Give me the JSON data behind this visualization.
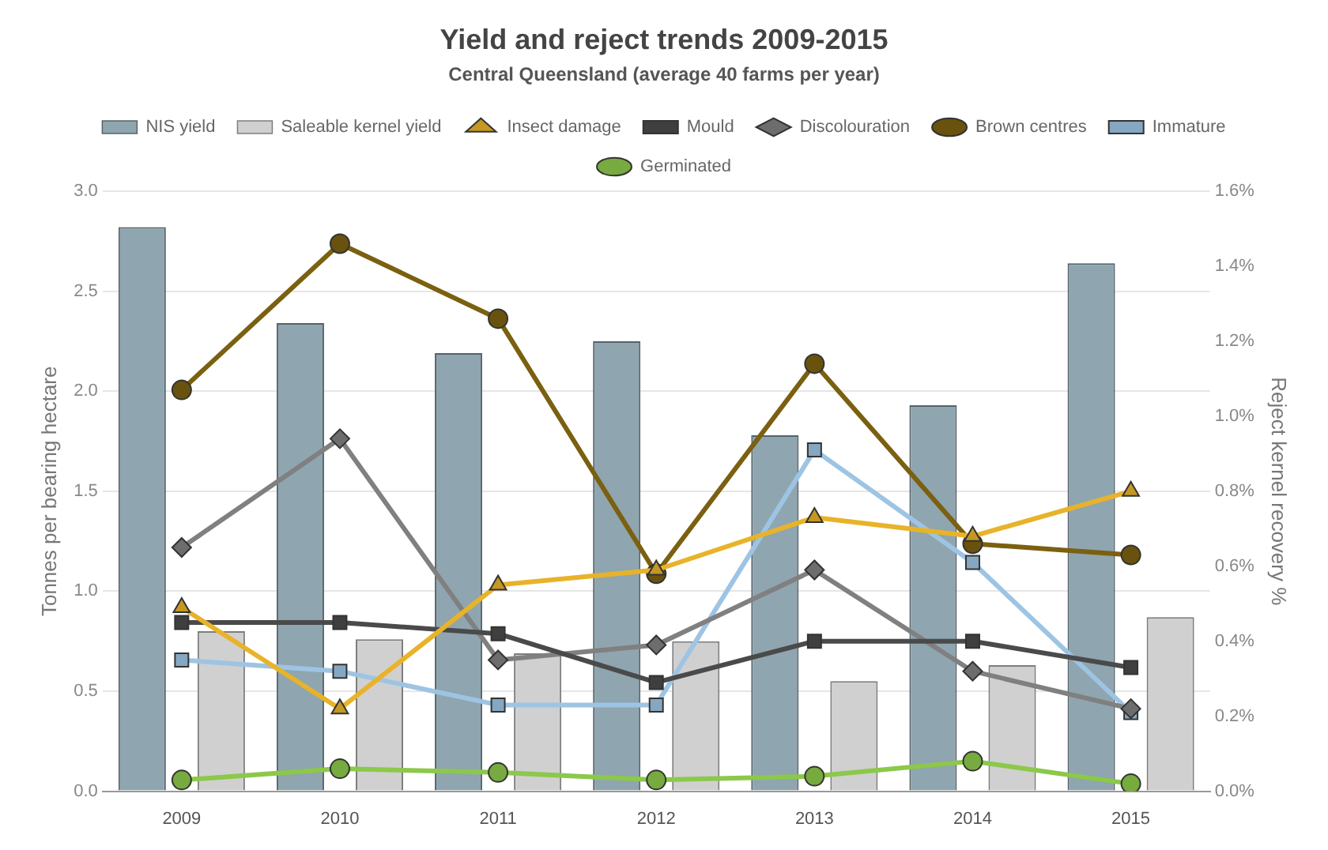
{
  "chart_data": {
    "type": "bar",
    "title": "Yield and reject trends 2009-2015",
    "subtitle": "Central Queensland (average 40 farms per year)",
    "ylabel": "Tonnes per bearing hectare",
    "y2label": "Reject kernel recovery %",
    "categories": [
      "2009",
      "2010",
      "2011",
      "2012",
      "2013",
      "2014",
      "2015"
    ],
    "series": [
      {
        "name": "NIS yield",
        "color": "#8fa5b0",
        "values": [
          2.82,
          2.34,
          2.19,
          2.25,
          1.78,
          1.93,
          2.64
        ]
      },
      {
        "name": "Saleable kernel yield",
        "color": "#d0d0d0",
        "values": [
          0.8,
          0.76,
          0.69,
          0.75,
          0.55,
          0.63,
          0.87
        ]
      },
      {
        "name": "Insect damage",
        "type": "line",
        "axis": "y2",
        "marker": "triangle",
        "color": "#e8b32a",
        "values": [
          0.49,
          0.22,
          0.55,
          0.59,
          0.73,
          0.68,
          0.8
        ]
      },
      {
        "name": "Mould",
        "type": "line",
        "axis": "y2",
        "marker": "square",
        "color": "#4a4a4a",
        "values": [
          0.45,
          0.45,
          0.42,
          0.29,
          0.4,
          0.4,
          0.33
        ]
      },
      {
        "name": "Discolouration",
        "type": "line",
        "axis": "y2",
        "marker": "diamond",
        "color": "#808080",
        "values": [
          0.65,
          0.94,
          0.35,
          0.39,
          0.59,
          0.32,
          0.22
        ]
      },
      {
        "name": "Brown centres",
        "type": "line",
        "axis": "y2",
        "marker": "circle",
        "color": "#7a6010",
        "values": [
          1.07,
          1.46,
          1.26,
          0.58,
          1.14,
          0.66,
          0.63
        ]
      },
      {
        "name": "Immature",
        "type": "line",
        "axis": "y2",
        "marker": "square",
        "color": "#9ec4e4",
        "values": [
          0.35,
          0.32,
          0.23,
          0.23,
          0.91,
          0.61,
          0.21
        ]
      },
      {
        "name": "Germinated",
        "type": "line",
        "axis": "y2",
        "marker": "circle",
        "color": "#8cc84a",
        "values": [
          0.03,
          0.06,
          0.05,
          0.03,
          0.04,
          0.08,
          0.02
        ]
      }
    ],
    "ylim": [
      0,
      3
    ],
    "yticks": [
      {
        "value": 0,
        "label": "0.0"
      },
      {
        "value": 0.5,
        "label": "0.5"
      },
      {
        "value": 1,
        "label": "1.0"
      },
      {
        "value": 1.5,
        "label": "1.5"
      },
      {
        "value": 2,
        "label": "2.0"
      },
      {
        "value": 2.5,
        "label": "2.5"
      },
      {
        "value": 3,
        "label": "3.0"
      }
    ],
    "y2lim": [
      0,
      1.6
    ],
    "y2ticks": [
      {
        "value": 0,
        "label": "0.0%"
      },
      {
        "value": 0.2,
        "label": "0.2%"
      },
      {
        "value": 0.4,
        "label": "0.4%"
      },
      {
        "value": 0.6,
        "label": "0.6%"
      },
      {
        "value": 0.8,
        "label": "0.8%"
      },
      {
        "value": 1,
        "label": "1.0%"
      },
      {
        "value": 1.2,
        "label": "1.2%"
      },
      {
        "value": 1.4,
        "label": "1.4%"
      },
      {
        "value": 1.6,
        "label": "1.6%"
      }
    ],
    "grid": "y",
    "legend": "top"
  }
}
